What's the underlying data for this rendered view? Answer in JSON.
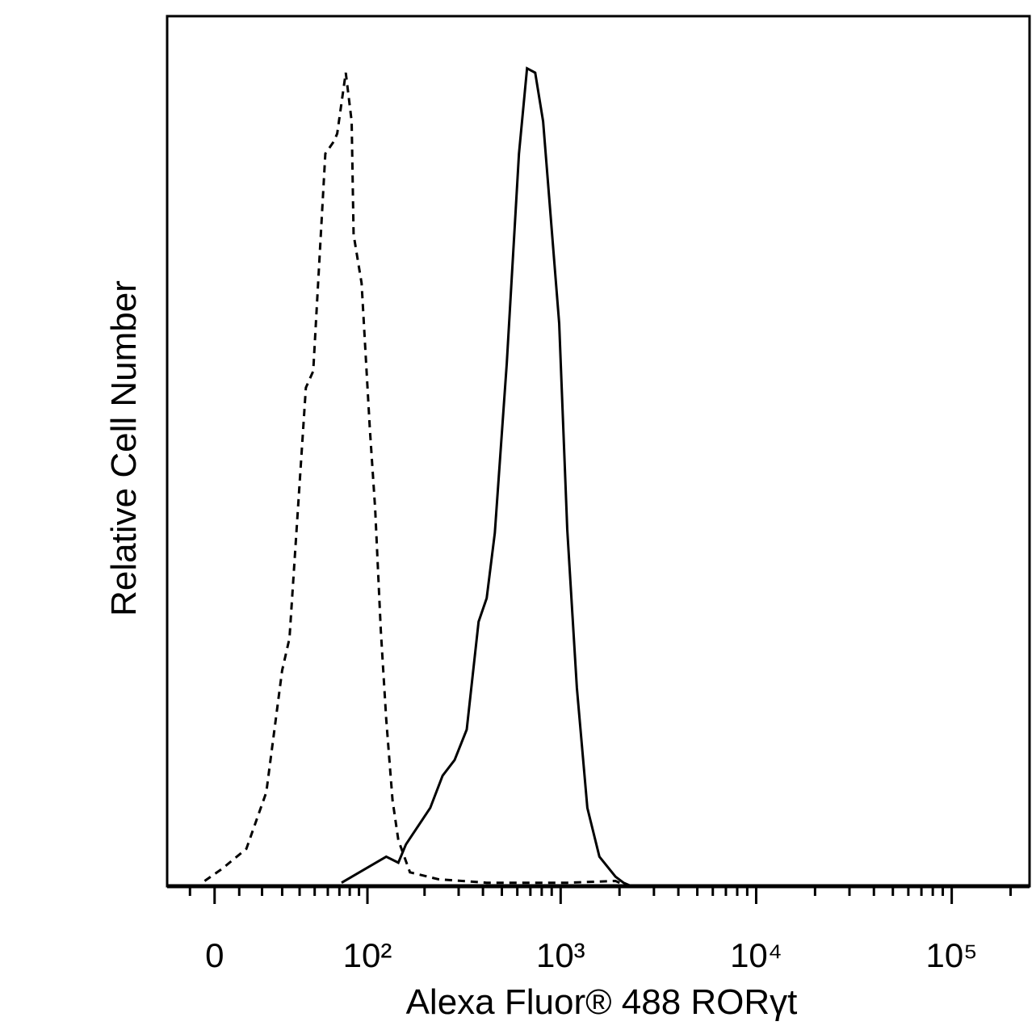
{
  "chart_data": {
    "type": "line",
    "x_label": "Alexa Fluor® 488 RORγt",
    "y_label": "Relative Cell Number",
    "xscale": "asinh",
    "xlim": [
      -20,
      250000
    ],
    "ylim": [
      0,
      100
    ],
    "xticks": [
      0,
      {
        "value": 100,
        "label": "10²"
      },
      {
        "value": 1000,
        "label": "10³"
      },
      {
        "value": 10000,
        "label": "10⁴"
      },
      {
        "value": 100000,
        "label": "10⁵"
      }
    ],
    "xminorticks": [
      -10,
      10,
      20,
      30,
      40,
      50,
      60,
      70,
      80,
      90,
      200,
      300,
      400,
      500,
      600,
      700,
      800,
      900,
      2000,
      3000,
      4000,
      5000,
      6000,
      7000,
      8000,
      9000,
      20000,
      30000,
      40000,
      50000,
      60000,
      70000,
      80000,
      90000,
      200000
    ],
    "series": [
      {
        "color": "#000000",
        "dashed": true,
        "x": [
          -4,
          3,
          13,
          22,
          30,
          34,
          44,
          49,
          58,
          65,
          68,
          76,
          82,
          84,
          93,
          103,
          110,
          118,
          126,
          136,
          146,
          168,
          236,
          418,
          1081,
          1907,
          2200
        ],
        "values": [
          0.6,
          2.0,
          4.3,
          10.8,
          24.8,
          28.5,
          57.3,
          59.2,
          84.2,
          85.6,
          86.5,
          93.5,
          87.9,
          74.9,
          69.3,
          52.6,
          43.4,
          29.4,
          19.2,
          9.9,
          5.3,
          1.6,
          0.8,
          0.4,
          0.4,
          0.6,
          0
        ]
      },
      {
        "color": "#000000",
        "dashed": false,
        "x": [
          72,
          126,
          146,
          160,
          214,
          248,
          286,
          330,
          380,
          418,
          460,
          530,
          612,
          673,
          741,
          813,
          983,
          1081,
          1210,
          1370,
          1578,
          1907,
          2098,
          2305
        ],
        "values": [
          0.4,
          3.4,
          2.7,
          4.8,
          9.0,
          12.7,
          14.5,
          18.0,
          30.4,
          33.1,
          40.6,
          60.1,
          84.2,
          94.0,
          93.5,
          87.9,
          64.7,
          41.0,
          22.8,
          9.0,
          3.4,
          1.1,
          0.4,
          0
        ]
      }
    ]
  }
}
